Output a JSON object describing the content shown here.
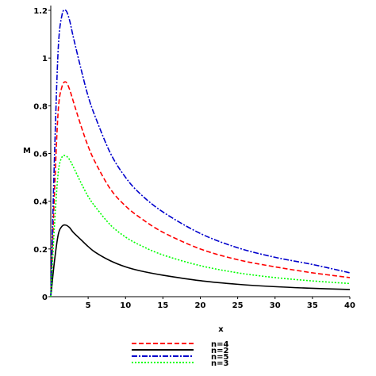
{
  "chart_data": {
    "type": "line",
    "xlabel": "x",
    "ylabel": "M",
    "xlim": [
      0,
      40
    ],
    "ylim": [
      0,
      1.22
    ],
    "xticks": [
      5,
      10,
      15,
      20,
      25,
      30,
      35,
      40
    ],
    "yticks": [
      0,
      0.2,
      0.4,
      0.6,
      0.8,
      1,
      1.2
    ],
    "ytick_labels": [
      "0",
      "0.2",
      "0.4",
      "0.6",
      "0.8",
      "1",
      "1.2"
    ],
    "grid": false,
    "legend_position": "bottom-center",
    "x": [
      0,
      0.5,
      1.0,
      1.5,
      2.0,
      2.5,
      3,
      4,
      5,
      6,
      8,
      10,
      12,
      15,
      20,
      25,
      30,
      35,
      40
    ],
    "series": [
      {
        "name": "n=4",
        "color": "#ff0000",
        "dash": "6,3",
        "values": [
          0,
          0.44,
          0.78,
          0.88,
          0.9,
          0.87,
          0.82,
          0.72,
          0.63,
          0.56,
          0.45,
          0.38,
          0.33,
          0.27,
          0.2,
          0.155,
          0.125,
          0.1,
          0.08
        ]
      },
      {
        "name": "n=2",
        "color": "#000000",
        "dash": "",
        "values": [
          0,
          0.15,
          0.26,
          0.295,
          0.3,
          0.29,
          0.27,
          0.24,
          0.21,
          0.185,
          0.15,
          0.125,
          0.108,
          0.09,
          0.067,
          0.052,
          0.042,
          0.035,
          0.03
        ]
      },
      {
        "name": "n=5",
        "color": "#0000cc",
        "dash": "7,2,2,2",
        "values": [
          0,
          0.59,
          1.04,
          1.18,
          1.2,
          1.16,
          1.09,
          0.96,
          0.84,
          0.75,
          0.6,
          0.5,
          0.43,
          0.355,
          0.265,
          0.205,
          0.165,
          0.135,
          0.1
        ]
      },
      {
        "name": "n=3",
        "color": "#00ff00",
        "dash": "2,2",
        "values": [
          0,
          0.3,
          0.52,
          0.585,
          0.59,
          0.575,
          0.545,
          0.48,
          0.42,
          0.375,
          0.3,
          0.25,
          0.215,
          0.175,
          0.13,
          0.1,
          0.08,
          0.066,
          0.055
        ]
      }
    ]
  }
}
